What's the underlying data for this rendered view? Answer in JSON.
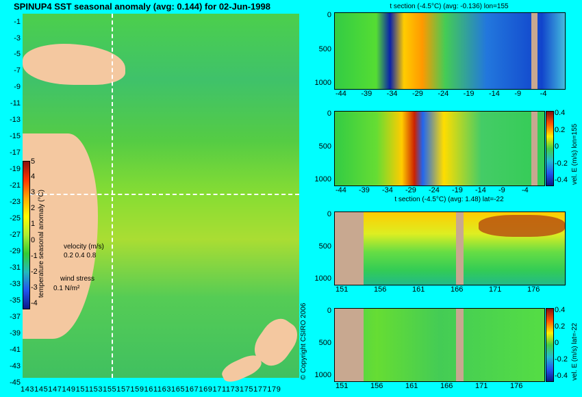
{
  "header": {
    "title": "SPINUP4 SST seasonal anomaly (avg: 0.144) for 02-Jun-1998"
  },
  "map": {
    "lat_ticks": [
      "-1",
      "-3",
      "-5",
      "-7",
      "-9",
      "-11",
      "-13",
      "-15",
      "-17",
      "-19",
      "-21",
      "-23",
      "-25",
      "-27",
      "-29",
      "-31",
      "-33",
      "-35",
      "-37",
      "-39",
      "-41",
      "-43",
      "-45"
    ],
    "lon_ticks": "143145147149151153155157159161163165167169171173175177179",
    "colorbar": {
      "label": "temperature seasonal anomaly (°C)",
      "ticks": [
        "5",
        "4",
        "3",
        "2",
        "1",
        "0",
        "-1",
        "-2",
        "-3",
        "-4"
      ]
    },
    "velocity": {
      "label": "velocity (m/s)",
      "scale": "0.2 0.4 0.8"
    },
    "wind": {
      "label": "wind stress",
      "scale": "0.1 N/m²"
    },
    "copyright": "© Copyright CSIRO 2006"
  },
  "panels": [
    {
      "title": "t section (-4.5°C) (avg: -0.136) lon=155",
      "xticks": [
        "-44",
        "-39",
        "-34",
        "-29",
        "-24",
        "-19",
        "-14",
        "-9",
        "-4"
      ],
      "yticks": [
        "0",
        "500",
        "1000"
      ]
    },
    {
      "title": "",
      "xticks": [
        "-44",
        "-39",
        "-34",
        "-29",
        "-24",
        "-19",
        "-14",
        "-9",
        "-4"
      ],
      "yticks": [
        "0",
        "500",
        "1000"
      ],
      "cbar_label": "vel. E (m/s) lon=155",
      "cbar_ticks": [
        "0.4",
        "0.2",
        "0",
        "-0.2",
        "-0.4"
      ]
    },
    {
      "title": "t section (-4.5°C) (avg: 1.48) lat=-22",
      "xticks": [
        "151",
        "156",
        "161",
        "166",
        "171",
        "176"
      ],
      "yticks": [
        "0",
        "500",
        "1000"
      ]
    },
    {
      "title": "",
      "xticks": [
        "151",
        "156",
        "161",
        "166",
        "171",
        "176"
      ],
      "yticks": [
        "0",
        "500",
        "1000"
      ],
      "cbar_label": "vel. E (m/s) lat=-22",
      "cbar_ticks": [
        "0.4",
        "0.2",
        "0",
        "-0.2",
        "-0.4"
      ]
    }
  ],
  "colors": {
    "background": "#00ffff",
    "land": "#f4c8a0",
    "section_land": "#c8a890"
  },
  "chart_data": [
    {
      "type": "heatmap",
      "title": "SPINUP4 SST seasonal anomaly (avg: 0.144) for 02-Jun-1998",
      "ylabel": "",
      "xlabel": "",
      "xlim": [
        143,
        179
      ],
      "ylim": [
        -45,
        -1
      ],
      "colorbar_range": [
        -4,
        5
      ]
    },
    {
      "type": "heatmap",
      "title": "t section (-4.5°C) (avg: -0.136) lon=155",
      "xlim": [
        -45,
        -1
      ],
      "ylim": [
        1050,
        0
      ]
    },
    {
      "type": "heatmap",
      "title": "",
      "xlim": [
        -45,
        -1
      ],
      "ylim": [
        1050,
        0
      ],
      "colorbar_range": [
        -0.4,
        0.4
      ]
    },
    {
      "type": "heatmap",
      "title": "t section (-4.5°C) (avg: 1.48) lat=-22",
      "xlim": [
        150,
        180
      ],
      "ylim": [
        1050,
        0
      ]
    },
    {
      "type": "heatmap",
      "title": "",
      "xlim": [
        150,
        180
      ],
      "ylim": [
        1050,
        0
      ],
      "colorbar_range": [
        -0.4,
        0.4
      ]
    }
  ]
}
